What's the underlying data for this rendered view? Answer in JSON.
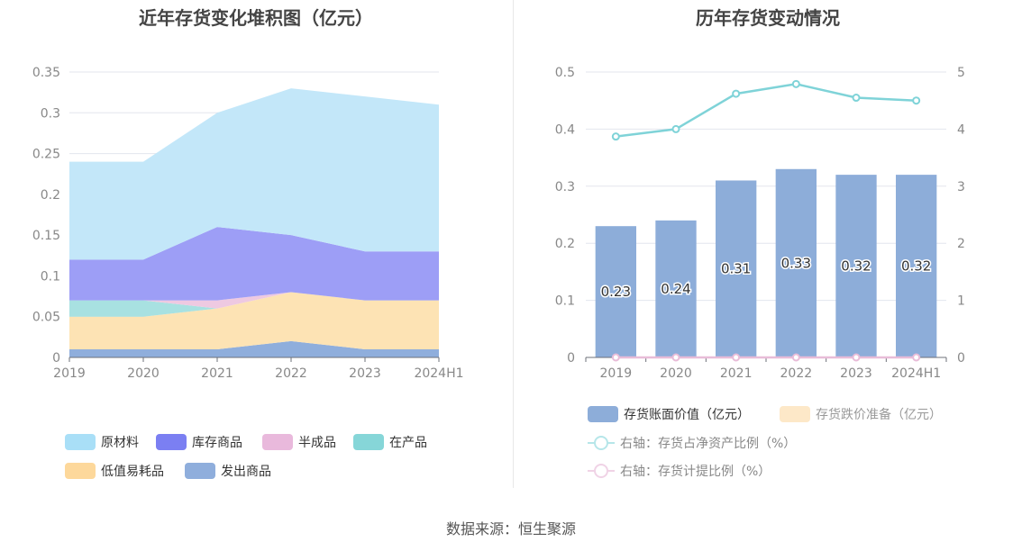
{
  "source": "数据来源：恒生聚源",
  "left_chart": {
    "title": "近年存货变化堆积图（亿元）",
    "legend": [
      "原材料",
      "库存商品",
      "半成品",
      "在产品",
      "低值易耗品",
      "发出商品"
    ]
  },
  "right_chart": {
    "title": "历年存货变动情况",
    "legend": [
      "存货账面价值（亿元）",
      "存货跌价准备（亿元）",
      "右轴：存货占净资产比例（%）",
      "右轴：存货计提比例（%）"
    ]
  },
  "chart_data": [
    {
      "type": "area",
      "stacked": true,
      "title": "近年存货变化堆积图（亿元）",
      "categories": [
        "2019",
        "2020",
        "2021",
        "2022",
        "2023",
        "2024H1"
      ],
      "ylim": [
        0,
        0.35
      ],
      "yticks": [
        "0",
        "0.05",
        "0.1",
        "0.15",
        "0.2",
        "0.25",
        "0.3",
        "0.35"
      ],
      "series": [
        {
          "name": "发出商品",
          "color": "#8faedc",
          "values": [
            0.01,
            0.01,
            0.01,
            0.02,
            0.01,
            0.01
          ]
        },
        {
          "name": "低值易耗品",
          "color": "#fde3b4",
          "values": [
            0.04,
            0.04,
            0.05,
            0.06,
            0.06,
            0.06
          ]
        },
        {
          "name": "在产品",
          "color": "#a8e1e1",
          "values": [
            0.02,
            0.02,
            0.0,
            0.0,
            0.0,
            0.0
          ]
        },
        {
          "name": "半成品",
          "color": "#eec9e1",
          "values": [
            0.0,
            0.0,
            0.01,
            0.0,
            0.0,
            0.0
          ]
        },
        {
          "name": "库存商品",
          "color": "#9d9ef6",
          "values": [
            0.05,
            0.05,
            0.09,
            0.07,
            0.06,
            0.06
          ]
        },
        {
          "name": "原材料",
          "color": "#c3e7f9",
          "values": [
            0.12,
            0.12,
            0.14,
            0.18,
            0.19,
            0.18
          ]
        }
      ]
    },
    {
      "type": "bar",
      "title": "历年存货变动情况",
      "categories": [
        "2019",
        "2020",
        "2021",
        "2022",
        "2023",
        "2024H1"
      ],
      "ylim": [
        0,
        0.5
      ],
      "yticks": [
        "0",
        "0.1",
        "0.2",
        "0.3",
        "0.4",
        "0.5"
      ],
      "y2lim": [
        0,
        5
      ],
      "y2ticks": [
        "0",
        "1",
        "2",
        "3",
        "4",
        "5"
      ],
      "series": [
        {
          "name": "存货账面价值（亿元）",
          "type": "bar",
          "axis": "left",
          "color": "#8dadd9",
          "values": [
            0.23,
            0.24,
            0.31,
            0.33,
            0.32,
            0.32
          ],
          "labels": [
            "0.23",
            "0.24",
            "0.31",
            "0.33",
            "0.32",
            "0.32"
          ]
        },
        {
          "name": "存货跌价准备（亿元）",
          "type": "bar",
          "axis": "left",
          "color": "#fde8c8",
          "values": [
            0,
            0,
            0,
            0,
            0,
            0
          ]
        },
        {
          "name": "右轴：存货占净资产比例（%）",
          "type": "line",
          "axis": "right",
          "color": "#7fd3d8",
          "values": [
            3.87,
            4.0,
            4.62,
            4.79,
            4.55,
            4.5
          ]
        },
        {
          "name": "右轴：存货计提比例（%）",
          "type": "line",
          "axis": "right",
          "color": "#e8bcd8",
          "values": [
            0,
            0,
            0,
            0,
            0,
            0
          ]
        }
      ]
    }
  ]
}
